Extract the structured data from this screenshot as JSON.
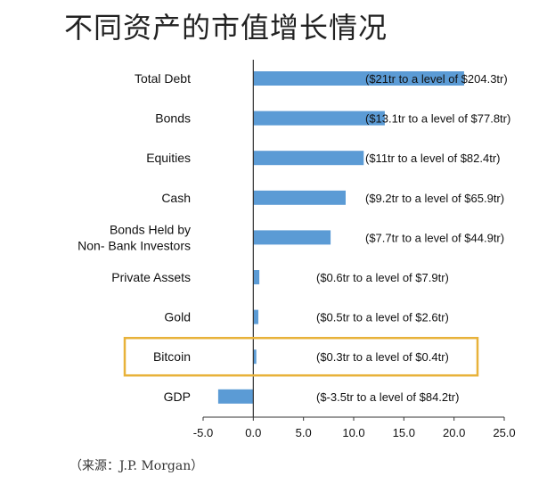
{
  "title": "不同资产的市值增长情况",
  "source": "（来源：J.P. Morgan）",
  "colors": {
    "bar": "#5b9bd5",
    "axis": "#333333",
    "highlight": "#e8b23a",
    "label": "#111111"
  },
  "chart_data": {
    "type": "bar",
    "orientation": "horizontal",
    "categories": [
      "Total Debt",
      "Bonds",
      "Equities",
      "Cash",
      "Bonds Held by\nNon- Bank Investors",
      "Private Assets",
      "Gold",
      "Bitcoin",
      "GDP"
    ],
    "values": [
      21,
      13.1,
      11,
      9.2,
      7.7,
      0.6,
      0.5,
      0.3,
      -3.5
    ],
    "data_labels": [
      "($21tr to a level of $204.3tr)",
      "($13.1tr to a level of $77.8tr)",
      "($11tr to a level of $82.4tr)",
      "($9.2tr to a level of $65.9tr)",
      "($7.7tr to a level of $44.9tr)",
      "($0.6tr to a level of $7.9tr)",
      "($0.5tr to a level of $2.6tr)",
      "($0.3tr to a level of $0.4tr)",
      "($-3.5tr to a level of $84.2tr)"
    ],
    "xlim": [
      -5,
      25
    ],
    "xticks": [
      "-5.0",
      "0.0",
      "5.0",
      "10.0",
      "15.0",
      "20.0",
      "25.0"
    ],
    "highlighted_category": "Bitcoin",
    "grid": false
  }
}
